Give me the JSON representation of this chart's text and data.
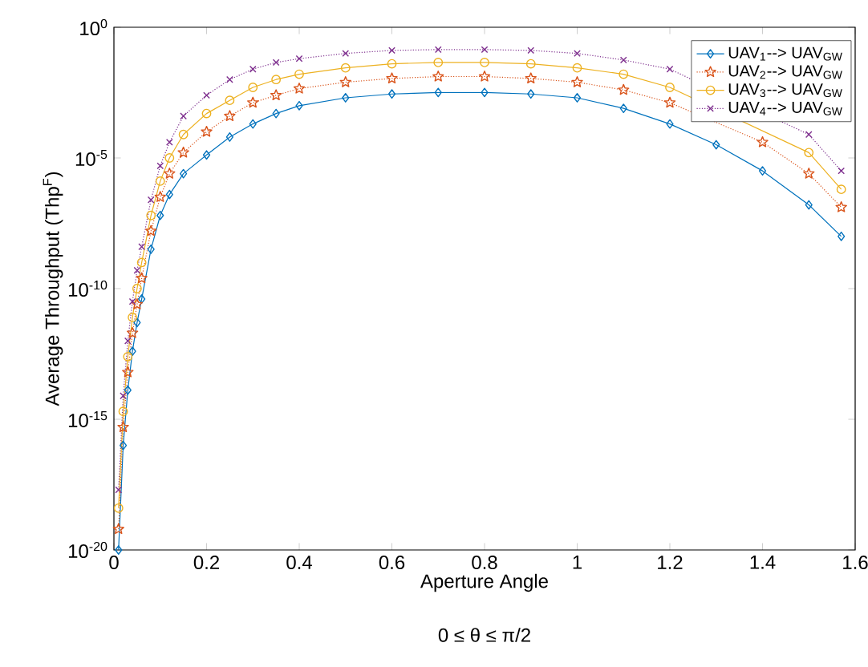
{
  "chart_data": {
    "type": "line",
    "xlabel": "Aperture Angle",
    "ylabel": "Average Throughput (Thp$^{F}$)",
    "annotations": [
      "0 ≤ θ ≤ π/2"
    ],
    "log": "y",
    "legend": "top right",
    "grid": false,
    "xlim": [
      0,
      1.6
    ],
    "xticks": [
      0,
      0.2,
      0.4,
      0.6,
      0.8,
      1,
      1.2,
      1.4,
      1.6
    ],
    "ylim": [
      1e-20,
      1
    ],
    "yticks": [
      {
        "value": 1e-20,
        "label": "10$^{-20}$"
      },
      {
        "value": 1e-15,
        "label": "10$^{-15}$"
      },
      {
        "value": 1e-10,
        "label": "10$^{-10}$"
      },
      {
        "value": 1e-05,
        "label": "10$^{-5}$"
      },
      {
        "value": 1,
        "label": "10$^{0}$"
      }
    ],
    "x": [
      0.01,
      0.02,
      0.03,
      0.04,
      0.05,
      0.06,
      0.08,
      0.1,
      0.12,
      0.15,
      0.2,
      0.25,
      0.3,
      0.35,
      0.4,
      0.5,
      0.6,
      0.7,
      0.8,
      0.9,
      1.0,
      1.1,
      1.2,
      1.3,
      1.4,
      1.5,
      1.57
    ],
    "series": [
      {
        "name": "UAV$_{1}$--> UAV$_{GW}$",
        "color": "#0072bd",
        "marker": "diamond",
        "line_style": "solid",
        "values": [
          1e-20,
          1e-16,
          1.3e-14,
          4e-13,
          5e-12,
          4e-11,
          3.2e-09,
          6.3e-08,
          4e-07,
          2.5e-06,
          1.3e-05,
          6.3e-05,
          0.0002,
          0.0005,
          0.001,
          0.002,
          0.0028,
          0.0032,
          0.0032,
          0.0028,
          0.002,
          0.00079,
          0.0002,
          3.2e-05,
          3.2e-06,
          1.6e-07,
          1e-08
        ]
      },
      {
        "name": "UAV$_{2}$--> UAV$_{GW}$",
        "color": "#d95319",
        "marker": "star",
        "line_style": "dotted",
        "values": [
          6.3e-20,
          5e-16,
          6.3e-14,
          2e-12,
          2.5e-11,
          2.5e-10,
          1.6e-08,
          3.2e-07,
          2.5e-06,
          1.6e-05,
          0.0001,
          0.0004,
          0.0013,
          0.0025,
          0.0045,
          0.0079,
          0.011,
          0.013,
          0.013,
          0.011,
          0.0079,
          0.004,
          0.0013,
          null,
          4e-05,
          2.5e-06,
          1.3e-07
        ]
      },
      {
        "name": "UAV$_{3}$--> UAV$_{GW}$",
        "color": "#edb120",
        "marker": "circle",
        "line_style": "solid",
        "values": [
          4e-19,
          2e-15,
          2.5e-13,
          7.9e-12,
          1e-10,
          1e-09,
          6.3e-08,
          1.3e-06,
          1e-05,
          7.9e-05,
          0.0005,
          0.0016,
          0.005,
          0.01,
          0.016,
          0.028,
          0.04,
          0.045,
          0.045,
          0.04,
          0.028,
          0.016,
          0.005,
          null,
          null,
          1.6e-05,
          6.3e-07
        ]
      },
      {
        "name": "UAV$_{4}$--> UAV$_{GW}$",
        "color": "#7e2f8e",
        "marker": "cross",
        "line_style": "dotted",
        "values": [
          2e-18,
          7.9e-15,
          1e-12,
          3.2e-11,
          5e-10,
          4e-09,
          2.5e-07,
          5e-06,
          4e-05,
          0.0004,
          0.0025,
          0.01,
          0.025,
          0.045,
          0.063,
          0.1,
          0.13,
          0.14,
          0.14,
          0.13,
          0.1,
          0.056,
          0.025,
          null,
          null,
          7.9e-05,
          3.2e-06
        ]
      }
    ]
  }
}
